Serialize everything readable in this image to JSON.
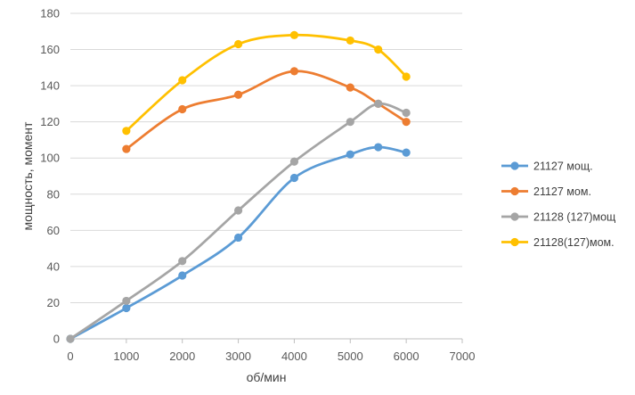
{
  "chart_data": {
    "type": "line",
    "title": "",
    "xlabel": "об/мин",
    "ylabel": "мощность, момент",
    "xlim": [
      0,
      7000
    ],
    "ylim": [
      0,
      180
    ],
    "x_ticks": [
      0,
      1000,
      2000,
      3000,
      4000,
      5000,
      6000,
      7000
    ],
    "y_ticks": [
      0,
      20,
      40,
      60,
      80,
      100,
      120,
      140,
      160,
      180
    ],
    "grid": "horizontal",
    "legend_position": "right",
    "smooth": true,
    "series": [
      {
        "name": "21127 мощ.",
        "color": "#5b9bd5",
        "points": [
          [
            0,
            0
          ],
          [
            1000,
            17
          ],
          [
            2000,
            35
          ],
          [
            3000,
            56
          ],
          [
            4000,
            89
          ],
          [
            5000,
            102
          ],
          [
            5500,
            106
          ],
          [
            6000,
            103
          ]
        ]
      },
      {
        "name": "21127 мом.",
        "color": "#ed7d31",
        "points": [
          [
            1000,
            105
          ],
          [
            2000,
            127
          ],
          [
            3000,
            135
          ],
          [
            4000,
            148
          ],
          [
            5000,
            139
          ],
          [
            5500,
            130
          ],
          [
            6000,
            120
          ]
        ]
      },
      {
        "name": "21128 (127)мощ",
        "color": "#a5a5a5",
        "points": [
          [
            0,
            0
          ],
          [
            1000,
            21
          ],
          [
            2000,
            43
          ],
          [
            3000,
            71
          ],
          [
            4000,
            98
          ],
          [
            5000,
            120
          ],
          [
            5500,
            130
          ],
          [
            6000,
            125
          ]
        ]
      },
      {
        "name": "21128(127)мом.",
        "color": "#ffc000",
        "points": [
          [
            1000,
            115
          ],
          [
            2000,
            143
          ],
          [
            3000,
            163
          ],
          [
            4000,
            168
          ],
          [
            5000,
            165
          ],
          [
            5500,
            160
          ],
          [
            6000,
            145
          ]
        ]
      }
    ]
  }
}
